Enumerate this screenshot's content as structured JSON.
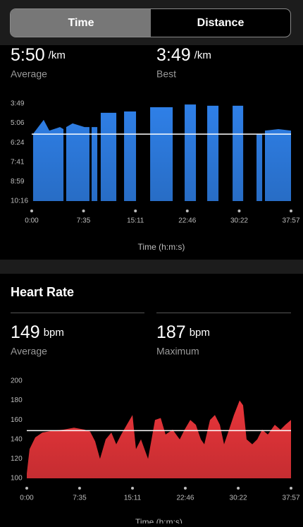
{
  "tabs": [
    "Time",
    "Distance"
  ],
  "pace": {
    "average": "5:50",
    "average_unit": "/km",
    "average_label": "Average",
    "best": "3:49",
    "best_unit": "/km",
    "best_label": "Best"
  },
  "heart_rate": {
    "title": "Heart Rate",
    "average": "149",
    "average_unit": "bpm",
    "average_label": "Average",
    "maximum": "187",
    "maximum_unit": "bpm",
    "maximum_label": "Maximum"
  },
  "chart_data": [
    {
      "type": "area",
      "xlabel": "Time (h:m:s)",
      "x": [
        12,
        105,
        155,
        248,
        279,
        291,
        303,
        359,
        464,
        507,
        516,
        526,
        576,
        591,
        606,
        650,
        743,
        777,
        811,
        916,
        978,
        1040,
        1145,
        1238,
        1290,
        1343,
        1442,
        1491,
        1541,
        1640,
        1702,
        1764,
        1857,
        1915,
        1974,
        2024,
        2036,
        2048,
        2166,
        2277
      ],
      "series": [
        {
          "color": "#2f80e8",
          "values": [
            349,
            293,
            336,
            322,
            330,
            null,
            322,
            307,
            322,
            322,
            null,
            322,
            322,
            null,
            265,
            265,
            265,
            null,
            260,
            260,
            null,
            243,
            243,
            243,
            null,
            232,
            232,
            null,
            237,
            237,
            null,
            237,
            237,
            null,
            349,
            349,
            null,
            336,
            330,
            336
          ]
        }
      ],
      "average": 350,
      "xlim": [
        0,
        2277
      ],
      "xticks": [
        {
          "value": 0,
          "label": "0:00"
        },
        {
          "value": 455,
          "label": "7:35"
        },
        {
          "value": 911,
          "label": "15:11"
        },
        {
          "value": 1366,
          "label": "22:46"
        },
        {
          "value": 1822,
          "label": "30:22"
        },
        {
          "value": 2277,
          "label": "37:57"
        }
      ],
      "ylim": [
        616,
        229
      ],
      "yticks": [
        {
          "value": 229,
          "label": "3:49"
        },
        {
          "value": 306,
          "label": "5:06"
        },
        {
          "value": 384,
          "label": "6:24"
        },
        {
          "value": 461,
          "label": "7:41"
        },
        {
          "value": 539,
          "label": "8:59"
        },
        {
          "value": 616,
          "label": "10:16"
        }
      ]
    },
    {
      "type": "area",
      "xlabel": "Time (h:m:s)",
      "x": [
        0,
        24,
        73,
        134,
        225,
        316,
        407,
        498,
        546,
        589,
        631,
        680,
        729,
        771,
        814,
        862,
        911,
        941,
        984,
        1045,
        1105,
        1154,
        1196,
        1257,
        1318,
        1360,
        1409,
        1457,
        1500,
        1530,
        1579,
        1621,
        1664,
        1700,
        1743,
        1785,
        1834,
        1864,
        1894,
        1943,
        1986,
        2028,
        2077,
        2137,
        2186,
        2228,
        2277
      ],
      "series": [
        {
          "color": "#e8353a",
          "values": [
            105,
            130,
            142,
            147,
            149,
            150,
            152,
            150,
            148,
            138,
            120,
            140,
            147,
            135,
            145,
            155,
            165,
            130,
            140,
            120,
            160,
            162,
            145,
            150,
            140,
            150,
            160,
            155,
            140,
            135,
            160,
            165,
            155,
            135,
            150,
            165,
            180,
            175,
            140,
            135,
            140,
            150,
            145,
            155,
            150,
            155,
            160
          ]
        }
      ],
      "average": 149,
      "xlim": [
        0,
        2277
      ],
      "xticks": [
        {
          "value": 0,
          "label": "0:00"
        },
        {
          "value": 455,
          "label": "7:35"
        },
        {
          "value": 911,
          "label": "15:11"
        },
        {
          "value": 1366,
          "label": "22:46"
        },
        {
          "value": 1822,
          "label": "30:22"
        },
        {
          "value": 2277,
          "label": "37:57"
        }
      ],
      "ylim": [
        100,
        200
      ],
      "yticks": [
        100,
        120,
        140,
        160,
        180,
        200
      ]
    }
  ]
}
